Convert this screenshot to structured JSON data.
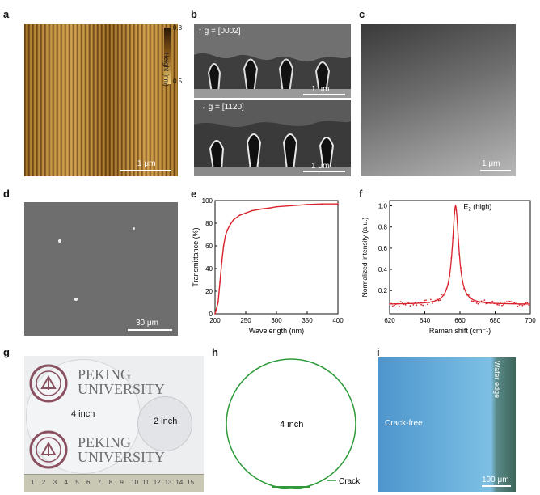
{
  "panel_labels": {
    "a": "a",
    "b": "b",
    "c": "c",
    "d": "d",
    "e": "e",
    "f": "f",
    "g": "g",
    "h": "h",
    "i": "i"
  },
  "panel_a": {
    "scale_bar": "1 μm",
    "colorbar": {
      "title": "Height (nm)",
      "max": "0.8",
      "min": "0.5"
    },
    "colors": {
      "dark": "#3b2308",
      "mid": "#b07a22",
      "light": "#f0cf72"
    }
  },
  "panel_b": {
    "top_label": "g = [0002]",
    "bottom_label": "g = [112̄0]",
    "scale_bar_top": "1 μm",
    "scale_bar_bottom": "1 μm"
  },
  "panel_c": {
    "scale_bar": "1 μm"
  },
  "panel_d": {
    "scale_bar": "30 μm"
  },
  "chart_data": [
    {
      "type": "line",
      "panel": "e",
      "xlabel": "Wavelength (nm)",
      "ylabel": "Transmittance (%)",
      "xlim": [
        200,
        400
      ],
      "ylim": [
        0,
        100
      ],
      "xticks": [
        "200",
        "250",
        "300",
        "350",
        "400"
      ],
      "yticks": [
        "0",
        "20",
        "40",
        "60",
        "80",
        "100"
      ],
      "x": [
        200,
        205,
        208,
        211,
        214,
        217,
        220,
        225,
        230,
        240,
        250,
        260,
        275,
        290,
        300,
        325,
        350,
        375,
        400
      ],
      "values": [
        0,
        10,
        28,
        46,
        60,
        69,
        74,
        79,
        83,
        87,
        89,
        91,
        92.5,
        93.5,
        94.5,
        95.5,
        96.5,
        97,
        97
      ],
      "color": "#d9232c"
    },
    {
      "type": "line",
      "panel": "f",
      "xlabel": "Raman shift (cm⁻¹)",
      "ylabel": "Normalized intensity (a.u.)",
      "xlim": [
        620,
        700
      ],
      "ylim": [
        -0.02,
        1.05
      ],
      "xticks": [
        "620",
        "640",
        "660",
        "680",
        "700"
      ],
      "yticks": [
        "0.2",
        "0.4",
        "0.6",
        "0.8",
        "1.0"
      ],
      "peak_label": "E",
      "peak_label_sub": "2",
      "peak_label_rest": " (high)",
      "peak_center": 657.5,
      "peak_hwhm": 2.2,
      "baseline": 0.07,
      "color": "#d9232c"
    }
  ],
  "panel_g": {
    "wafer_large": "4 inch",
    "wafer_small": "2 inch",
    "logo_text": "PEKING UNIVERSITY",
    "line1": "PEKING",
    "line2": "UNIVERSITY",
    "ruler_numbers": [
      "1",
      "2",
      "3",
      "4",
      "5",
      "6",
      "7",
      "8",
      "9",
      "10",
      "11",
      "12",
      "13",
      "14",
      "15"
    ]
  },
  "panel_h": {
    "center_label": "4 inch",
    "legend": "Crack",
    "color": "#2e9a3a"
  },
  "panel_i": {
    "label_left": "Crack-free",
    "label_edge": "Wafer edge",
    "scale_bar": "100 μm"
  }
}
